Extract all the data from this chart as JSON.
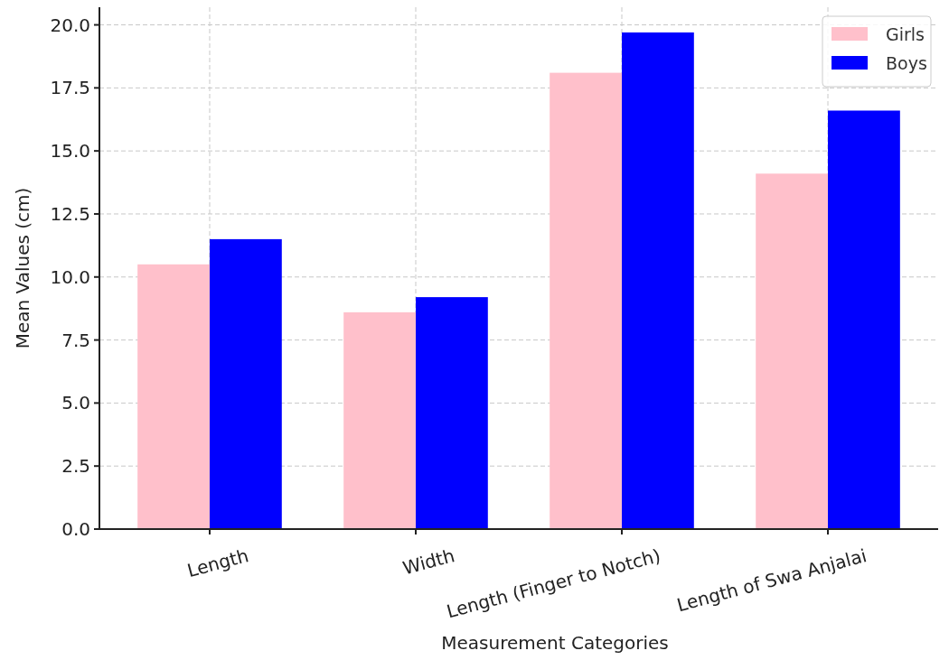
{
  "chart_data": {
    "type": "bar",
    "xlabel": "Measurement Categories",
    "ylabel": "Mean Values (cm)",
    "categories": [
      "Length",
      "Width",
      "Length (Finger to Notch)",
      "Length of Swa Anjalai"
    ],
    "series": [
      {
        "name": "Girls",
        "color": "#ffc0cb",
        "values": [
          10.5,
          8.6,
          18.1,
          14.1
        ]
      },
      {
        "name": "Boys",
        "color": "#0000ff",
        "values": [
          11.5,
          9.2,
          19.7,
          16.6
        ]
      }
    ],
    "ylim": [
      0,
      20.7
    ],
    "yticks": [
      {
        "value": 0,
        "label": "0.0"
      },
      {
        "value": 2.5,
        "label": "2.5"
      },
      {
        "value": 5,
        "label": "5.0"
      },
      {
        "value": 7.5,
        "label": "7.5"
      },
      {
        "value": 10,
        "label": "10.0"
      },
      {
        "value": 12.5,
        "label": "12.5"
      },
      {
        "value": 15,
        "label": "15.0"
      },
      {
        "value": 17.5,
        "label": "17.5"
      },
      {
        "value": 20,
        "label": "20.0"
      }
    ],
    "grid": true,
    "legend": "top right"
  }
}
